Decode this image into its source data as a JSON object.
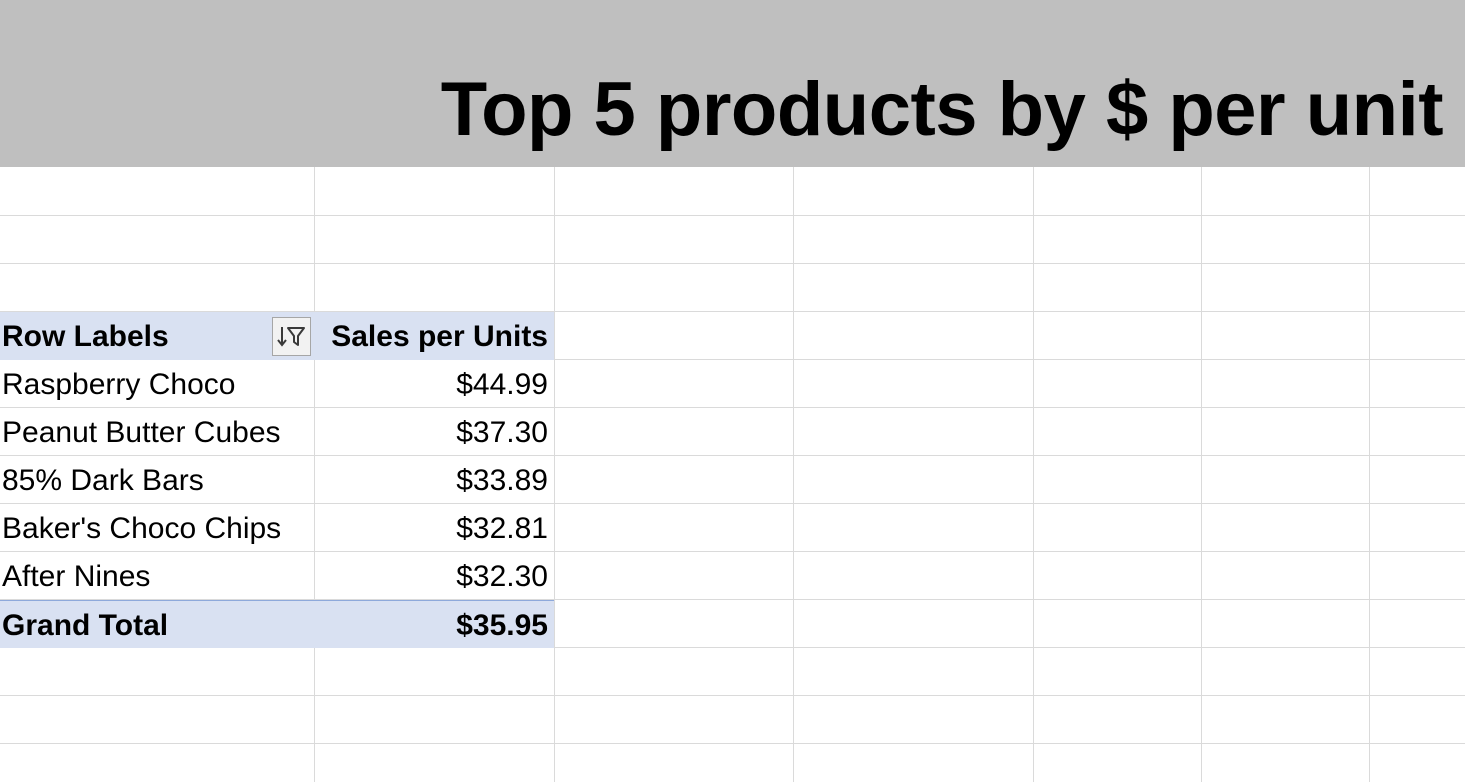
{
  "banner": {
    "title": "Top 5 products by $ per unit",
    "background": "#bfbfbf"
  },
  "pivot": {
    "header": {
      "row_labels": "Row Labels",
      "value_header": "Sales per Units",
      "filter_icon": "sort-filter-icon"
    },
    "rows": [
      {
        "label": "Raspberry Choco",
        "value": "$44.99"
      },
      {
        "label": "Peanut Butter Cubes",
        "value": "$37.30"
      },
      {
        "label": "85% Dark Bars",
        "value": "$33.89"
      },
      {
        "label": "Baker's Choco Chips",
        "value": "$32.81"
      },
      {
        "label": "After Nines",
        "value": "$32.30"
      }
    ],
    "total": {
      "label": "Grand Total",
      "value": "$35.95"
    },
    "header_fill": "#d9e1f2"
  }
}
